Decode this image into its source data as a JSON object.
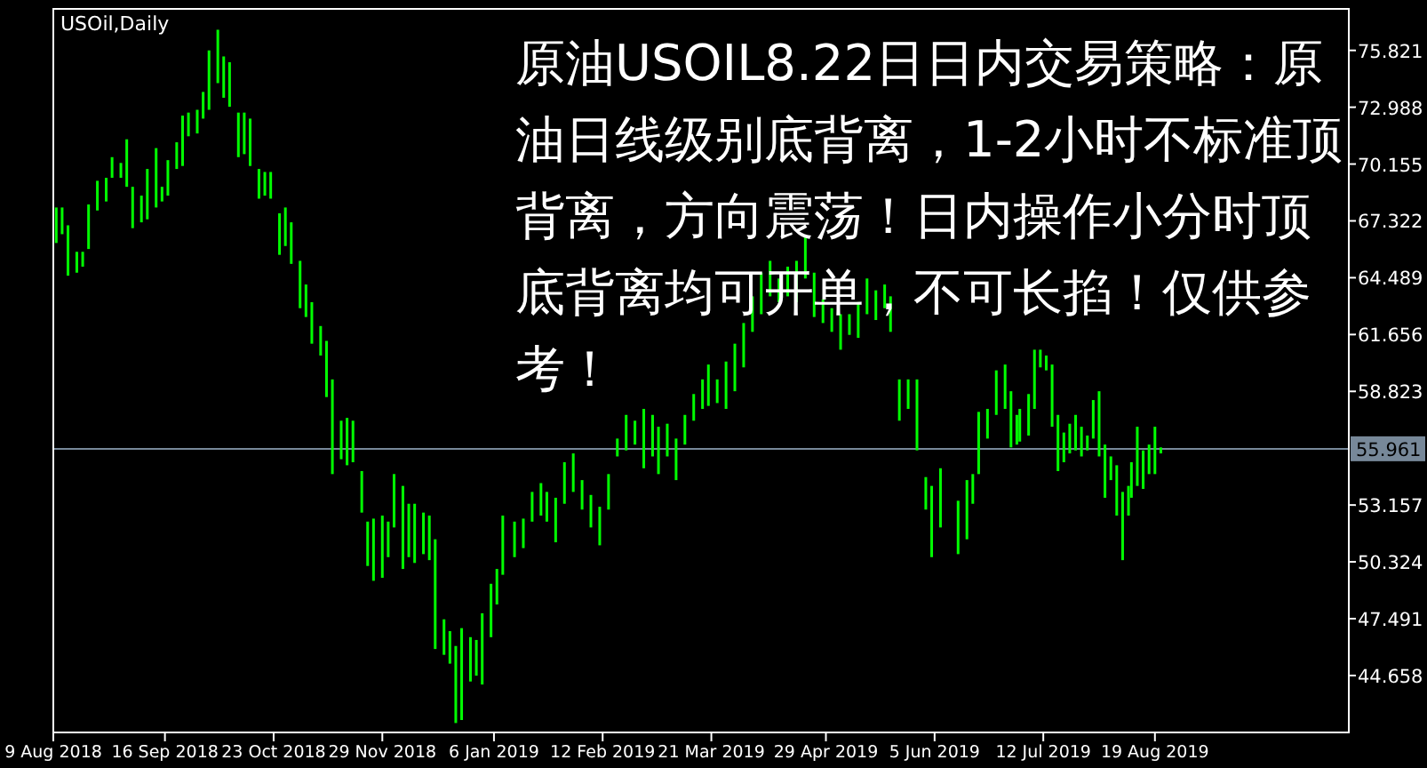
{
  "chart_data": {
    "type": "bar",
    "title": "USOil,Daily",
    "annotations": [
      "原油USOIL8.22日日内交易策略：原油日线级别底背离，1-2小时不标准顶背离，方向震荡！日内操作小分时顶底背离均可开单，不可长掐！仅供参考！"
    ],
    "color": "#00ff00",
    "x": [
      "2018-08-10",
      "2018-08-12",
      "2018-08-14",
      "2018-08-17",
      "2018-08-19",
      "2018-08-21",
      "2018-08-24",
      "2018-08-27",
      "2018-08-29",
      "2018-09-01",
      "2018-09-03",
      "2018-09-05",
      "2018-09-08",
      "2018-09-10",
      "2018-09-13",
      "2018-09-15",
      "2018-09-17",
      "2018-09-20",
      "2018-09-22",
      "2018-09-24",
      "2018-09-27",
      "2018-09-29",
      "2018-10-01",
      "2018-10-04",
      "2018-10-06",
      "2018-10-08",
      "2018-10-11",
      "2018-10-13",
      "2018-10-15",
      "2018-10-18",
      "2018-10-20",
      "2018-10-22",
      "2018-10-25",
      "2018-10-27",
      "2018-10-29",
      "2018-11-01",
      "2018-11-03",
      "2018-11-05",
      "2018-11-08",
      "2018-11-10",
      "2018-11-12",
      "2018-11-15",
      "2018-11-17",
      "2018-11-19",
      "2018-11-22",
      "2018-11-24",
      "2018-11-26",
      "2018-11-29",
      "2018-12-01",
      "2018-12-03",
      "2018-12-06",
      "2018-12-08",
      "2018-12-10",
      "2018-12-13",
      "2018-12-15",
      "2018-12-17",
      "2018-12-20",
      "2018-12-22",
      "2018-12-24",
      "2018-12-26",
      "2018-12-29",
      "2018-12-31",
      "2019-01-02",
      "2019-01-05",
      "2019-01-07",
      "2019-01-09",
      "2019-01-13",
      "2019-01-16",
      "2019-01-19",
      "2019-01-22",
      "2019-01-24",
      "2019-01-27",
      "2019-01-30",
      "2019-02-02",
      "2019-02-05",
      "2019-02-08",
      "2019-02-11",
      "2019-02-14",
      "2019-02-17",
      "2019-02-20",
      "2019-02-23",
      "2019-02-26",
      "2019-03-01",
      "2019-03-03",
      "2019-03-06",
      "2019-03-09",
      "2019-03-12",
      "2019-03-15",
      "2019-03-18",
      "2019-03-20",
      "2019-03-23",
      "2019-03-26",
      "2019-03-29",
      "2019-04-01",
      "2019-04-04",
      "2019-04-07",
      "2019-04-10",
      "2019-04-13",
      "2019-04-16",
      "2019-04-19",
      "2019-04-22",
      "2019-04-25",
      "2019-04-28",
      "2019-05-01",
      "2019-05-04",
      "2019-05-07",
      "2019-05-10",
      "2019-05-13",
      "2019-05-16",
      "2019-05-19",
      "2019-05-21",
      "2019-05-24",
      "2019-05-27",
      "2019-05-30",
      "2019-06-02",
      "2019-06-04",
      "2019-06-07",
      "2019-06-13",
      "2019-06-16",
      "2019-06-18",
      "2019-06-20",
      "2019-06-23",
      "2019-06-26",
      "2019-06-29",
      "2019-07-01",
      "2019-07-03",
      "2019-07-04",
      "2019-07-07",
      "2019-07-09",
      "2019-07-11",
      "2019-07-13",
      "2019-07-15",
      "2019-07-17",
      "2019-07-19",
      "2019-07-21",
      "2019-07-23",
      "2019-07-25",
      "2019-07-27",
      "2019-07-29",
      "2019-07-31",
      "2019-08-02",
      "2019-08-04",
      "2019-08-06",
      "2019-08-08",
      "2019-08-10",
      "2019-08-11",
      "2019-08-13",
      "2019-08-15",
      "2019-08-17",
      "2019-08-19",
      "2019-08-21"
    ],
    "base": [
      66.22,
      66.66,
      64.59,
      64.74,
      65.04,
      65.92,
      67.84,
      68.29,
      69.47,
      69.47,
      69.02,
      66.96,
      67.25,
      67.4,
      67.99,
      68.29,
      68.58,
      69.91,
      70.06,
      71.54,
      71.68,
      72.42,
      72.86,
      74.19,
      73.46,
      73.01,
      70.5,
      70.65,
      70.06,
      68.43,
      68.58,
      68.43,
      65.63,
      66.07,
      65.18,
      62.97,
      62.53,
      61.2,
      60.61,
      58.54,
      54.7,
      55.44,
      55.14,
      55.29,
      52.78,
      50.12,
      49.38,
      49.53,
      50.56,
      52.04,
      49.97,
      50.56,
      50.27,
      50.71,
      50.41,
      45.98,
      45.69,
      45.25,
      42.29,
      42.44,
      44.36,
      44.65,
      44.21,
      46.57,
      48.2,
      49.68,
      50.56,
      51.01,
      52.33,
      52.63,
      52.33,
      51.3,
      53.22,
      53.81,
      52.93,
      52.04,
      51.15,
      52.93,
      55.58,
      55.88,
      56.17,
      54.99,
      55.58,
      54.7,
      55.58,
      54.4,
      56.17,
      57.36,
      57.95,
      58.1,
      58.24,
      57.95,
      58.83,
      60.02,
      61.79,
      62.67,
      63.56,
      63.27,
      63.56,
      63.27,
      64.45,
      62.53,
      62.23,
      61.79,
      60.9,
      61.64,
      61.49,
      62.67,
      62.38,
      62.97,
      61.79,
      57.36,
      57.95,
      55.88,
      52.93,
      50.56,
      52.04,
      50.71,
      51.45,
      53.22,
      54.7,
      56.47,
      57.65,
      57.95,
      56.03,
      56.17,
      56.32,
      56.62,
      57.95,
      60.02,
      59.87,
      57.06,
      54.85,
      55.29,
      55.73,
      55.88,
      55.58,
      55.88,
      56.47,
      55.58,
      53.52,
      54.4,
      52.63,
      50.41,
      52.63,
      53.52,
      54.11,
      53.96,
      54.7,
      54.7,
      55.73
    ],
    "values": [
      1.77,
      1.33,
      2.51,
      1.04,
      0.74,
      2.22,
      1.48,
      1.18,
      1.03,
      0.74,
      2.37,
      2.06,
      1.33,
      2.51,
      2.96,
      0.73,
      1.77,
      1.33,
      2.51,
      1.18,
      1.18,
      1.33,
      2.96,
      2.66,
      2.06,
      2.22,
      2.22,
      2.07,
      2.36,
      1.48,
      1.18,
      1.33,
      2.07,
      1.92,
      2.07,
      2.36,
      1.62,
      2.07,
      1.47,
      2.8,
      4.72,
      1.92,
      2.36,
      2.07,
      2.07,
      2.21,
      3.1,
      3.1,
      1.77,
      2.66,
      4.14,
      2.66,
      2.95,
      2.07,
      2.22,
      5.47,
      1.77,
      1.62,
      3.84,
      4.58,
      2.21,
      1.78,
      3.55,
      2.66,
      1.77,
      2.95,
      1.77,
      1.47,
      1.48,
      1.62,
      1.48,
      2.22,
      2.07,
      1.92,
      1.47,
      1.62,
      1.92,
      1.77,
      0.89,
      1.77,
      1.19,
      2.96,
      2.07,
      2.36,
      1.63,
      2.07,
      1.48,
      1.33,
      1.47,
      2.06,
      1.18,
      2.36,
      2.37,
      2.21,
      1.77,
      2.07,
      1.77,
      1.18,
      1.48,
      2.06,
      2.06,
      2.21,
      1.18,
      1.18,
      1.77,
      1.03,
      1.78,
      1.78,
      1.48,
      1.18,
      1.77,
      2.06,
      1.47,
      3.54,
      1.62,
      3.55,
      2.95,
      2.66,
      2.95,
      1.48,
      3.1,
      1.48,
      2.22,
      2.21,
      2.8,
      1.48,
      1.63,
      2.07,
      2.95,
      0.88,
      0.74,
      3.1,
      2.8,
      1.48,
      1.48,
      1.77,
      1.48,
      0.74,
      1.92,
      3.25,
      2.65,
      1.18,
      2.51,
      3.4,
      1.48,
      1.77,
      2.95,
      1.92,
      1.47,
      2.36,
      0.3
    ],
    "xlim": [
      "2018-08-09",
      "2019-10-24"
    ],
    "xticks": [
      {
        "value": "2018-08-09",
        "label": "9 Aug 2018"
      },
      {
        "value": "2018-09-16",
        "label": "16 Sep 2018"
      },
      {
        "value": "2018-10-23",
        "label": "23 Oct 2018"
      },
      {
        "value": "2018-11-29",
        "label": "29 Nov 2018"
      },
      {
        "value": "2019-01-06",
        "label": "6 Jan 2019"
      },
      {
        "value": "2019-02-12",
        "label": "12 Feb 2019"
      },
      {
        "value": "2019-03-21",
        "label": "21 Mar 2019"
      },
      {
        "value": "2019-04-29",
        "label": "29 Apr 2019"
      },
      {
        "value": "2019-06-05",
        "label": "5 Jun 2019"
      },
      {
        "value": "2019-07-12",
        "label": "12 Jul 2019"
      },
      {
        "value": "2019-08-19",
        "label": "19 Aug 2019"
      }
    ],
    "ylim": [
      41.82,
      77.89
    ],
    "yticks": [
      44.658,
      47.491,
      50.324,
      53.157,
      58.823,
      61.656,
      64.489,
      67.322,
      70.155,
      72.988,
      75.821
    ],
    "ref_lines": [
      {
        "axis": "y",
        "value": 55.961,
        "label": "55.961",
        "color": "#778899"
      }
    ]
  }
}
